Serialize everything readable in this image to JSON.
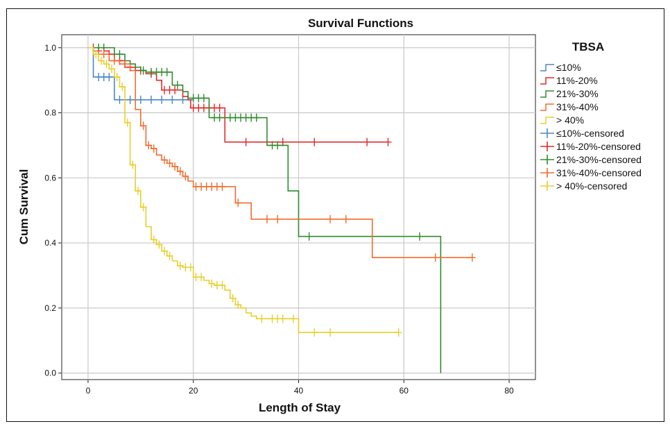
{
  "chart_data": {
    "type": "line",
    "title": "Survival Functions",
    "xlabel": "Length of Stay",
    "ylabel": "Cum Survival",
    "xlim": [
      -5,
      85
    ],
    "ylim": [
      -0.02,
      1.04
    ],
    "xticks": [
      "0",
      "20",
      "40",
      "60",
      "80"
    ],
    "xtick_values": [
      0,
      20,
      40,
      60,
      80
    ],
    "yticks": [
      "0.0",
      "0.2",
      "0.4",
      "0.6",
      "0.8",
      "1.0"
    ],
    "ytick_values": [
      0.0,
      0.2,
      0.4,
      0.6,
      0.8,
      1.0
    ],
    "grid": true,
    "legend_title": "TBSA",
    "legend_position": "right",
    "legend": [
      {
        "label": "≤10%",
        "kind": "line",
        "color": "#4a86c8"
      },
      {
        "label": "11%-20%",
        "kind": "line",
        "color": "#e02a2a"
      },
      {
        "label": "21%-30%",
        "kind": "line",
        "color": "#2e8b2e"
      },
      {
        "label": "31%-40%",
        "kind": "line",
        "color": "#f26b2a"
      },
      {
        "label": "> 40%",
        "kind": "line",
        "color": "#e8cf2a"
      },
      {
        "label": "≤10%-censored",
        "kind": "cross",
        "color": "#4a86c8"
      },
      {
        "label": "11%-20%-censored",
        "kind": "cross",
        "color": "#e02a2a"
      },
      {
        "label": "21%-30%-censored",
        "kind": "cross",
        "color": "#2e8b2e"
      },
      {
        "label": "31%-40%-censored",
        "kind": "cross",
        "color": "#f26b2a"
      },
      {
        "label": "> 40%-censored",
        "kind": "cross",
        "color": "#e8cf2a"
      }
    ],
    "series": [
      {
        "name": "≤10%",
        "color": "#4a86c8",
        "steps": [
          [
            0,
            1.0
          ],
          [
            1,
            0.91
          ],
          [
            5,
            0.84
          ],
          [
            20,
            0.84
          ]
        ],
        "censored": [
          [
            2,
            0.91
          ],
          [
            3,
            0.91
          ],
          [
            4,
            0.91
          ],
          [
            6,
            0.84
          ],
          [
            8,
            0.84
          ],
          [
            10,
            0.84
          ],
          [
            12,
            0.84
          ],
          [
            14,
            0.84
          ],
          [
            16,
            0.84
          ],
          [
            18,
            0.84
          ]
        ]
      },
      {
        "name": "11%-20%",
        "color": "#e02a2a",
        "steps": [
          [
            0,
            1.0
          ],
          [
            3,
            0.99
          ],
          [
            4,
            0.98
          ],
          [
            5,
            0.96
          ],
          [
            7,
            0.94
          ],
          [
            9,
            0.93
          ],
          [
            11,
            0.92
          ],
          [
            13,
            0.9
          ],
          [
            14,
            0.87
          ],
          [
            18,
            0.85
          ],
          [
            19,
            0.84
          ],
          [
            19.5,
            0.815
          ],
          [
            26,
            0.71
          ],
          [
            57,
            0.71
          ]
        ],
        "censored": [
          [
            1,
            1.0
          ],
          [
            2,
            0.99
          ],
          [
            4,
            0.98
          ],
          [
            6,
            0.96
          ],
          [
            8,
            0.94
          ],
          [
            10,
            0.93
          ],
          [
            12,
            0.92
          ],
          [
            14.5,
            0.87
          ],
          [
            15.5,
            0.87
          ],
          [
            16.5,
            0.87
          ],
          [
            20,
            0.815
          ],
          [
            21,
            0.815
          ],
          [
            22,
            0.815
          ],
          [
            23,
            0.815
          ],
          [
            24,
            0.815
          ],
          [
            25,
            0.815
          ],
          [
            30,
            0.71
          ],
          [
            37,
            0.71
          ],
          [
            43,
            0.71
          ],
          [
            53,
            0.71
          ],
          [
            57,
            0.71
          ]
        ]
      },
      {
        "name": "21%-30%",
        "color": "#2e8b2e",
        "steps": [
          [
            0,
            1.0
          ],
          [
            5,
            0.98
          ],
          [
            7,
            0.96
          ],
          [
            8,
            0.95
          ],
          [
            9,
            0.94
          ],
          [
            10,
            0.93
          ],
          [
            11,
            0.925
          ],
          [
            16,
            0.885
          ],
          [
            18,
            0.865
          ],
          [
            19,
            0.845
          ],
          [
            23,
            0.785
          ],
          [
            34,
            0.7
          ],
          [
            38,
            0.56
          ],
          [
            40,
            0.42
          ],
          [
            67,
            0.0
          ]
        ],
        "censored": [
          [
            2,
            1.0
          ],
          [
            3,
            1.0
          ],
          [
            6,
            0.98
          ],
          [
            10.5,
            0.93
          ],
          [
            12,
            0.925
          ],
          [
            13,
            0.925
          ],
          [
            14,
            0.925
          ],
          [
            15,
            0.925
          ],
          [
            17,
            0.885
          ],
          [
            20,
            0.845
          ],
          [
            21,
            0.845
          ],
          [
            22,
            0.845
          ],
          [
            24,
            0.785
          ],
          [
            25,
            0.785
          ],
          [
            27,
            0.785
          ],
          [
            28,
            0.785
          ],
          [
            29,
            0.785
          ],
          [
            30,
            0.785
          ],
          [
            31,
            0.785
          ],
          [
            32,
            0.785
          ],
          [
            35,
            0.7
          ],
          [
            36,
            0.7
          ],
          [
            42,
            0.42
          ],
          [
            63,
            0.42
          ]
        ]
      },
      {
        "name": "31%-40%",
        "color": "#f26b2a",
        "steps": [
          [
            0,
            1.0
          ],
          [
            1,
            0.99
          ],
          [
            2,
            0.98
          ],
          [
            4,
            0.96
          ],
          [
            6,
            0.95
          ],
          [
            8,
            0.93
          ],
          [
            9,
            0.81
          ],
          [
            10,
            0.76
          ],
          [
            11,
            0.7
          ],
          [
            12,
            0.69
          ],
          [
            13,
            0.67
          ],
          [
            14,
            0.655
          ],
          [
            15,
            0.645
          ],
          [
            16,
            0.635
          ],
          [
            17,
            0.62
          ],
          [
            18,
            0.605
          ],
          [
            19,
            0.59
          ],
          [
            20,
            0.573
          ],
          [
            28,
            0.523
          ],
          [
            31,
            0.473
          ],
          [
            54,
            0.355
          ],
          [
            73,
            0.355
          ]
        ],
        "censored": [
          [
            3,
            0.98
          ],
          [
            5,
            0.96
          ],
          [
            7,
            0.95
          ],
          [
            10.5,
            0.76
          ],
          [
            11.5,
            0.7
          ],
          [
            12.5,
            0.69
          ],
          [
            14.5,
            0.655
          ],
          [
            15.5,
            0.645
          ],
          [
            16.5,
            0.635
          ],
          [
            17.5,
            0.62
          ],
          [
            18.5,
            0.605
          ],
          [
            20.5,
            0.573
          ],
          [
            21.5,
            0.573
          ],
          [
            22.5,
            0.573
          ],
          [
            23.5,
            0.573
          ],
          [
            24.5,
            0.573
          ],
          [
            25.5,
            0.573
          ],
          [
            28.5,
            0.523
          ],
          [
            34,
            0.473
          ],
          [
            36,
            0.473
          ],
          [
            46,
            0.473
          ],
          [
            49,
            0.473
          ],
          [
            66,
            0.355
          ],
          [
            73,
            0.355
          ]
        ]
      },
      {
        "name": "> 40%",
        "color": "#e8cf2a",
        "steps": [
          [
            0,
            1.0
          ],
          [
            1,
            0.98
          ],
          [
            2,
            0.96
          ],
          [
            3,
            0.95
          ],
          [
            4,
            0.935
          ],
          [
            5,
            0.91
          ],
          [
            6,
            0.88
          ],
          [
            7,
            0.77
          ],
          [
            8,
            0.64
          ],
          [
            9,
            0.56
          ],
          [
            10,
            0.51
          ],
          [
            11,
            0.45
          ],
          [
            12,
            0.41
          ],
          [
            13,
            0.395
          ],
          [
            14,
            0.375
          ],
          [
            15,
            0.36
          ],
          [
            16,
            0.345
          ],
          [
            17,
            0.33
          ],
          [
            18,
            0.325
          ],
          [
            20,
            0.295
          ],
          [
            22,
            0.285
          ],
          [
            23,
            0.275
          ],
          [
            24,
            0.27
          ],
          [
            26,
            0.255
          ],
          [
            27,
            0.23
          ],
          [
            28,
            0.21
          ],
          [
            29,
            0.2
          ],
          [
            30,
            0.185
          ],
          [
            31,
            0.175
          ],
          [
            32,
            0.167
          ],
          [
            40,
            0.125
          ],
          [
            59,
            0.125
          ]
        ],
        "censored": [
          [
            1.5,
            0.98
          ],
          [
            2.5,
            0.96
          ],
          [
            3.5,
            0.95
          ],
          [
            4.5,
            0.935
          ],
          [
            5.5,
            0.91
          ],
          [
            6.5,
            0.88
          ],
          [
            7.5,
            0.77
          ],
          [
            8.5,
            0.64
          ],
          [
            9.5,
            0.56
          ],
          [
            10.5,
            0.51
          ],
          [
            12.5,
            0.41
          ],
          [
            13.5,
            0.395
          ],
          [
            14.5,
            0.375
          ],
          [
            15.5,
            0.36
          ],
          [
            17.5,
            0.33
          ],
          [
            18.5,
            0.325
          ],
          [
            19.5,
            0.325
          ],
          [
            20.5,
            0.295
          ],
          [
            21.5,
            0.295
          ],
          [
            23.5,
            0.275
          ],
          [
            24.5,
            0.27
          ],
          [
            25.5,
            0.27
          ],
          [
            27.5,
            0.23
          ],
          [
            28.5,
            0.21
          ],
          [
            33,
            0.167
          ],
          [
            35,
            0.167
          ],
          [
            36,
            0.167
          ],
          [
            37,
            0.167
          ],
          [
            39,
            0.167
          ],
          [
            43,
            0.125
          ],
          [
            46,
            0.125
          ],
          [
            59,
            0.125
          ]
        ]
      }
    ]
  }
}
